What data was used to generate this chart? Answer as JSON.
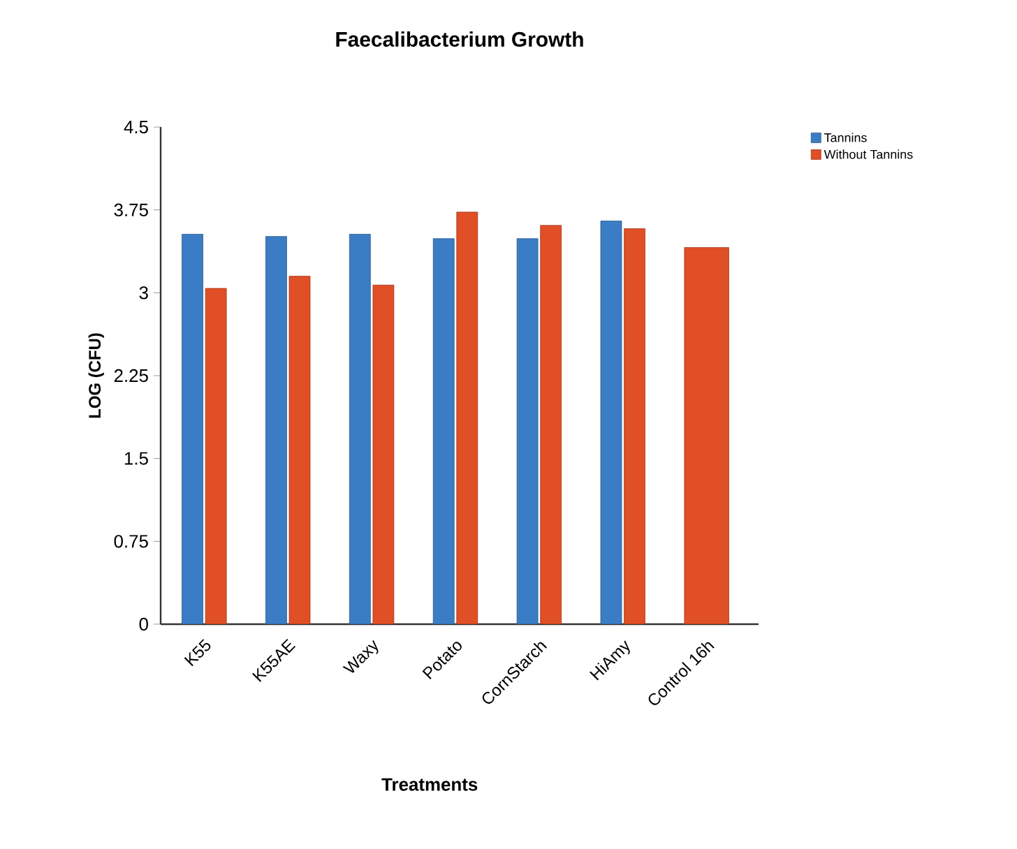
{
  "chart_data": {
    "type": "bar",
    "title": "Faecalibacterium Growth",
    "xlabel": "Treatments",
    "ylabel": "LOG (CFU)",
    "categories": [
      "K55",
      "K55AE",
      "Waxy",
      "Potato",
      "CornStarch",
      "HiAmy",
      "Control 16h"
    ],
    "series": [
      {
        "name": "Tannins",
        "color": "#3a7dc4",
        "values": [
          3.53,
          3.51,
          3.53,
          3.49,
          3.49,
          3.65,
          null
        ]
      },
      {
        "name": "Without Tannins",
        "color": "#e04f26",
        "values": [
          3.04,
          3.15,
          3.07,
          3.73,
          3.61,
          3.58,
          3.41
        ]
      }
    ],
    "ylim": [
      0,
      4.5
    ],
    "yticks": [
      0,
      0.75,
      1.5,
      2.25,
      3,
      3.75,
      4.5
    ],
    "legend": "right"
  }
}
